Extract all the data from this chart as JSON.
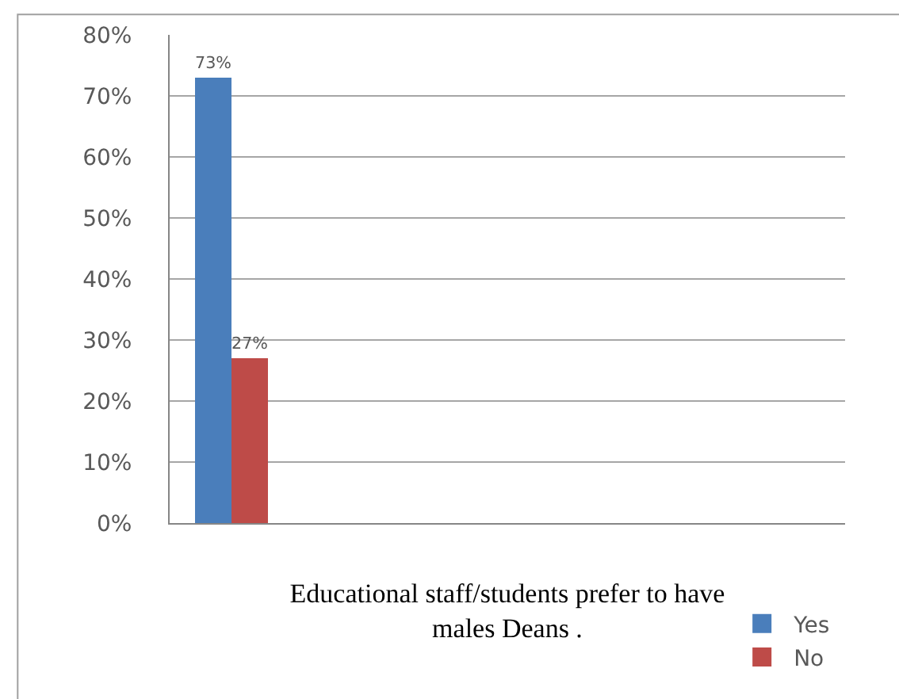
{
  "chart_data": {
    "type": "bar",
    "categories": [
      null
    ],
    "xlabel": "Educational staff/students prefer to have males Deans .",
    "series": [
      {
        "name": "Yes",
        "color": "#4a7ebb",
        "values": [
          73
        ],
        "value_labels": [
          "73%"
        ]
      },
      {
        "name": "No",
        "color": "#be4b48",
        "values": [
          27
        ],
        "value_labels": [
          "27%"
        ]
      }
    ],
    "ylim": [
      0,
      80
    ],
    "yticks": [
      {
        "value": 0,
        "label": "0%"
      },
      {
        "value": 10,
        "label": "10%"
      },
      {
        "value": 20,
        "label": "20%"
      },
      {
        "value": 30,
        "label": "30%"
      },
      {
        "value": 40,
        "label": "40%"
      },
      {
        "value": 50,
        "label": "50%"
      },
      {
        "value": 60,
        "label": "60%"
      },
      {
        "value": 70,
        "label": "70%"
      },
      {
        "value": 80,
        "label": "80%"
      }
    ],
    "grid": "y",
    "legend": "bottom right"
  }
}
